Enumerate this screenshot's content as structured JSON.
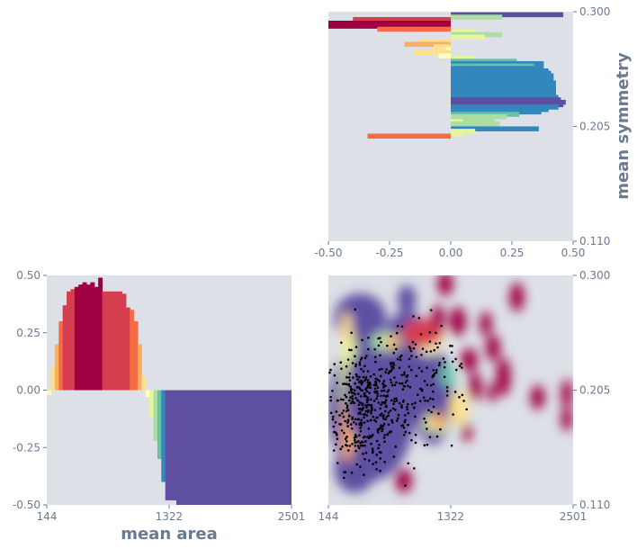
{
  "colors": {
    "panel_bg": "#dde0e6",
    "axis_text": "#6b7a90",
    "points": "#000000",
    "spectral": [
      "#9e0142",
      "#d53e4f",
      "#f46d43",
      "#fdae61",
      "#fee08b",
      "#ffffbf",
      "#e6f598",
      "#abdda4",
      "#66c2a5",
      "#3288bd",
      "#5e4fa2"
    ]
  },
  "chart_data": [
    {
      "id": "symmetry-signed-bars",
      "type": "bar",
      "orientation": "horizontal",
      "ylabel": "mean symmetry",
      "xlim": [
        -0.5,
        0.5
      ],
      "ylim": [
        0.11,
        0.3
      ],
      "xticks": [
        "-0.50",
        "-0.25",
        "0.00",
        "0.25",
        "0.50"
      ],
      "yticks": [
        "0.110",
        "0.205",
        "0.300"
      ],
      "bars": [
        {
          "y": 0.2975,
          "v": 0.46
        },
        {
          "y": 0.2955,
          "v": 0.21
        },
        {
          "y": 0.2935,
          "v": -0.4
        },
        {
          "y": 0.2905,
          "v": -0.5
        },
        {
          "y": 0.288,
          "v": -0.5
        },
        {
          "y": 0.2855,
          "v": -0.3
        },
        {
          "y": 0.2835,
          "v": 0.1
        },
        {
          "y": 0.281,
          "v": 0.21
        },
        {
          "y": 0.279,
          "v": 0.14
        },
        {
          "y": 0.2755,
          "v": -0.13
        },
        {
          "y": 0.273,
          "v": -0.19
        },
        {
          "y": 0.271,
          "v": -0.07
        },
        {
          "y": 0.2685,
          "v": -0.02
        },
        {
          "y": 0.266,
          "v": -0.15
        },
        {
          "y": 0.2635,
          "v": -0.05
        },
        {
          "y": 0.2615,
          "v": 0.1
        },
        {
          "y": 0.259,
          "v": 0.27
        },
        {
          "y": 0.257,
          "v": 0.38
        },
        {
          "y": 0.255,
          "v": 0.34
        },
        {
          "y": 0.253,
          "v": 0.38
        },
        {
          "y": 0.251,
          "v": 0.4
        },
        {
          "y": 0.249,
          "v": 0.41
        },
        {
          "y": 0.247,
          "v": 0.42
        },
        {
          "y": 0.245,
          "v": 0.42
        },
        {
          "y": 0.243,
          "v": 0.42
        },
        {
          "y": 0.241,
          "v": 0.43
        },
        {
          "y": 0.239,
          "v": 0.43
        },
        {
          "y": 0.237,
          "v": 0.43
        },
        {
          "y": 0.235,
          "v": 0.43
        },
        {
          "y": 0.233,
          "v": 0.43
        },
        {
          "y": 0.231,
          "v": 0.43
        },
        {
          "y": 0.229,
          "v": 0.44
        },
        {
          "y": 0.227,
          "v": 0.45
        },
        {
          "y": 0.225,
          "v": 0.47
        },
        {
          "y": 0.223,
          "v": 0.46
        },
        {
          "y": 0.221,
          "v": 0.44
        },
        {
          "y": 0.219,
          "v": 0.4
        },
        {
          "y": 0.217,
          "v": 0.37
        },
        {
          "y": 0.215,
          "v": 0.28
        },
        {
          "y": 0.213,
          "v": 0.23
        },
        {
          "y": 0.211,
          "v": 0.18
        },
        {
          "y": 0.209,
          "v": 0.05
        },
        {
          "y": 0.207,
          "v": 0.2
        },
        {
          "y": 0.205,
          "v": 0.16
        },
        {
          "y": 0.203,
          "v": 0.36
        },
        {
          "y": 0.201,
          "v": 0.1
        },
        {
          "y": 0.199,
          "v": 0.06
        },
        {
          "y": 0.197,
          "v": -0.34
        }
      ]
    },
    {
      "id": "area-signed-bars",
      "type": "bar",
      "orientation": "vertical",
      "xlabel": "mean area",
      "xlim": [
        144,
        2501
      ],
      "ylim": [
        -0.5,
        0.5
      ],
      "xticks": [
        "144",
        "1322",
        "2501"
      ],
      "yticks": [
        "0.50",
        "0.25",
        "0.00",
        "-0.25",
        "-0.50"
      ],
      "bars": [
        {
          "x": 164,
          "v": -0.02
        },
        {
          "x": 202,
          "v": 0.1
        },
        {
          "x": 240,
          "v": 0.2
        },
        {
          "x": 278,
          "v": 0.3
        },
        {
          "x": 316,
          "v": 0.37
        },
        {
          "x": 354,
          "v": 0.43
        },
        {
          "x": 392,
          "v": 0.44
        },
        {
          "x": 430,
          "v": 0.45
        },
        {
          "x": 468,
          "v": 0.46
        },
        {
          "x": 506,
          "v": 0.47
        },
        {
          "x": 544,
          "v": 0.46
        },
        {
          "x": 582,
          "v": 0.47
        },
        {
          "x": 620,
          "v": 0.45
        },
        {
          "x": 658,
          "v": 0.49
        },
        {
          "x": 696,
          "v": 0.43
        },
        {
          "x": 734,
          "v": 0.43
        },
        {
          "x": 772,
          "v": 0.43
        },
        {
          "x": 810,
          "v": 0.43
        },
        {
          "x": 848,
          "v": 0.43
        },
        {
          "x": 886,
          "v": 0.42
        },
        {
          "x": 924,
          "v": 0.36
        },
        {
          "x": 962,
          "v": 0.35
        },
        {
          "x": 1000,
          "v": 0.3
        },
        {
          "x": 1038,
          "v": 0.2
        },
        {
          "x": 1076,
          "v": 0.06
        },
        {
          "x": 1114,
          "v": -0.03
        },
        {
          "x": 1152,
          "v": -0.12
        },
        {
          "x": 1190,
          "v": -0.22
        },
        {
          "x": 1228,
          "v": -0.3
        },
        {
          "x": 1266,
          "v": -0.4
        },
        {
          "x": 1304,
          "v": -0.48
        },
        {
          "x": 1480,
          "v": -0.5
        },
        {
          "x": 1660,
          "v": -0.5
        },
        {
          "x": 1840,
          "v": -0.5
        },
        {
          "x": 2020,
          "v": -0.5
        },
        {
          "x": 2200,
          "v": -0.5
        },
        {
          "x": 2380,
          "v": -0.5
        }
      ]
    },
    {
      "id": "area-symmetry-density",
      "type": "scatter",
      "xlim": [
        144,
        2501
      ],
      "ylim": [
        0.11,
        0.3
      ],
      "xticks": [
        "144",
        "1322",
        "2501"
      ],
      "yticks": [
        "0.300",
        "0.205",
        "0.110"
      ],
      "density_regions": [
        {
          "x": 560,
          "y": 0.19,
          "rx": 420,
          "ry": 0.06,
          "level": 0
        },
        {
          "x": 900,
          "y": 0.225,
          "rx": 300,
          "ry": 0.045,
          "level": 0
        },
        {
          "x": 1150,
          "y": 0.2,
          "rx": 200,
          "ry": 0.04,
          "level": 0
        },
        {
          "x": 450,
          "y": 0.265,
          "rx": 250,
          "ry": 0.02,
          "level": 0
        },
        {
          "x": 400,
          "y": 0.14,
          "rx": 200,
          "ry": 0.02,
          "level": 0
        },
        {
          "x": 900,
          "y": 0.28,
          "rx": 90,
          "ry": 0.012,
          "level": 0
        },
        {
          "x": 1110,
          "y": 0.248,
          "rx": 150,
          "ry": 0.014,
          "level": 5
        },
        {
          "x": 1050,
          "y": 0.252,
          "rx": 200,
          "ry": 0.012,
          "level": 9
        },
        {
          "x": 1200,
          "y": 0.265,
          "rx": 60,
          "ry": 0.011,
          "level": 10
        },
        {
          "x": 1390,
          "y": 0.262,
          "rx": 80,
          "ry": 0.012,
          "level": 10
        },
        {
          "x": 1290,
          "y": 0.217,
          "rx": 70,
          "ry": 0.01,
          "level": 2
        },
        {
          "x": 1400,
          "y": 0.19,
          "rx": 90,
          "ry": 0.014,
          "level": 6
        },
        {
          "x": 1500,
          "y": 0.23,
          "rx": 80,
          "ry": 0.01,
          "level": 10
        },
        {
          "x": 1560,
          "y": 0.208,
          "rx": 60,
          "ry": 0.012,
          "level": 10
        },
        {
          "x": 1830,
          "y": 0.216,
          "rx": 70,
          "ry": 0.016,
          "level": 10
        },
        {
          "x": 1720,
          "y": 0.203,
          "rx": 45,
          "ry": 0.008,
          "level": 10
        },
        {
          "x": 2160,
          "y": 0.199,
          "rx": 70,
          "ry": 0.01,
          "level": 10
        },
        {
          "x": 2440,
          "y": 0.202,
          "rx": 55,
          "ry": 0.012,
          "level": 10
        },
        {
          "x": 2440,
          "y": 0.181,
          "rx": 55,
          "ry": 0.01,
          "level": 10
        },
        {
          "x": 1730,
          "y": 0.24,
          "rx": 70,
          "ry": 0.011,
          "level": 10
        },
        {
          "x": 1660,
          "y": 0.26,
          "rx": 60,
          "ry": 0.01,
          "level": 10
        },
        {
          "x": 1960,
          "y": 0.282,
          "rx": 70,
          "ry": 0.012,
          "level": 10
        },
        {
          "x": 1270,
          "y": 0.293,
          "rx": 75,
          "ry": 0.01,
          "level": 10
        },
        {
          "x": 1480,
          "y": 0.17,
          "rx": 45,
          "ry": 0.008,
          "level": 10
        },
        {
          "x": 870,
          "y": 0.13,
          "rx": 80,
          "ry": 0.01,
          "level": 10
        },
        {
          "x": 350,
          "y": 0.205,
          "rx": 90,
          "ry": 0.05,
          "level": 4
        },
        {
          "x": 330,
          "y": 0.175,
          "rx": 60,
          "ry": 0.03,
          "level": 7
        },
        {
          "x": 320,
          "y": 0.255,
          "rx": 50,
          "ry": 0.015,
          "level": 6
        },
        {
          "x": 700,
          "y": 0.245,
          "rx": 150,
          "ry": 0.008,
          "level": 3
        },
        {
          "x": 760,
          "y": 0.245,
          "rx": 70,
          "ry": 0.005,
          "level": 7
        },
        {
          "x": 1180,
          "y": 0.178,
          "rx": 120,
          "ry": 0.008,
          "level": 4
        },
        {
          "x": 1200,
          "y": 0.18,
          "rx": 60,
          "ry": 0.005,
          "level": 8
        },
        {
          "x": 500,
          "y": 0.2,
          "rx": 200,
          "ry": 0.04,
          "level": 0
        }
      ],
      "point_clusters": [
        {
          "x": 480,
          "y": 0.19,
          "sx": 200,
          "sy": 0.025,
          "n": 380
        },
        {
          "x": 900,
          "y": 0.205,
          "sx": 220,
          "sy": 0.025,
          "n": 150
        },
        {
          "x": 1250,
          "y": 0.215,
          "sx": 150,
          "sy": 0.025,
          "n": 40
        }
      ]
    }
  ]
}
